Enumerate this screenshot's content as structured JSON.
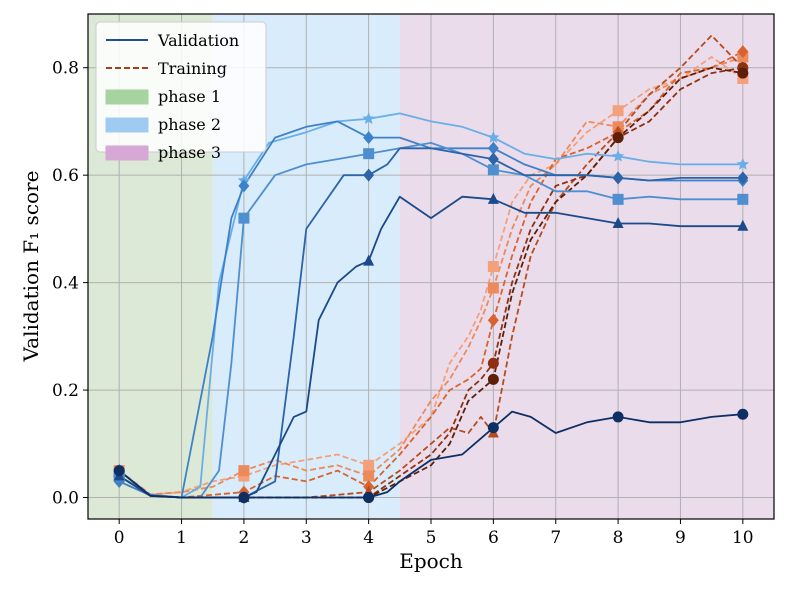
{
  "chart_data": {
    "type": "line",
    "xlabel": "Epoch",
    "ylabel": "Validation F₁ score",
    "xlim": [
      -0.5,
      10.5
    ],
    "ylim": [
      -0.04,
      0.9
    ],
    "xticks": [
      "0",
      "1",
      "2",
      "3",
      "4",
      "5",
      "6",
      "7",
      "8",
      "9",
      "10"
    ],
    "yticks": [
      "0.0",
      "0.2",
      "0.4",
      "0.6",
      "0.8"
    ],
    "grid": true,
    "legend_position": "top-left",
    "phases": [
      {
        "name": "phase 1",
        "start": -0.5,
        "end": 1.5,
        "color": "#dbe9d6"
      },
      {
        "name": "phase 2",
        "start": 1.5,
        "end": 4.5,
        "color": "#d9ecfb"
      },
      {
        "name": "phase 3",
        "start": 4.5,
        "end": 10.5,
        "color": "#ebdcec"
      }
    ],
    "legend": {
      "validation_label": "Validation",
      "training_label": "Training",
      "validation_color": "#1f4e8c",
      "training_color": "#a0401e",
      "phase_swatches": [
        "#a6d3a0",
        "#9fcbf3",
        "#d7a8d6"
      ]
    },
    "validation_series": [
      {
        "color": "#6aaee8",
        "marker": "star",
        "points": [
          [
            0,
            0.04
          ],
          [
            0.5,
            0.005
          ],
          [
            1,
            0
          ],
          [
            1.3,
            0.02
          ],
          [
            1.6,
            0.4
          ],
          [
            2,
            0.59
          ],
          [
            2.4,
            0.66
          ],
          [
            3,
            0.68
          ],
          [
            3.5,
            0.7
          ],
          [
            4,
            0.705
          ],
          [
            4.5,
            0.715
          ],
          [
            5,
            0.7
          ],
          [
            5.5,
            0.69
          ],
          [
            6,
            0.67
          ],
          [
            6.5,
            0.64
          ],
          [
            7,
            0.63
          ],
          [
            7.5,
            0.64
          ],
          [
            8,
            0.635
          ],
          [
            8.5,
            0.625
          ],
          [
            9,
            0.62
          ],
          [
            9.5,
            0.62
          ],
          [
            10,
            0.62
          ]
        ]
      },
      {
        "color": "#3d82c8",
        "marker": "diamond",
        "points": [
          [
            0,
            0.03
          ],
          [
            0.5,
            0.004
          ],
          [
            1,
            0
          ],
          [
            1.2,
            0.12
          ],
          [
            1.5,
            0.3
          ],
          [
            1.8,
            0.52
          ],
          [
            2,
            0.58
          ],
          [
            2.5,
            0.67
          ],
          [
            3,
            0.69
          ],
          [
            3.5,
            0.7
          ],
          [
            4,
            0.67
          ],
          [
            4.5,
            0.67
          ],
          [
            5,
            0.65
          ],
          [
            5.5,
            0.65
          ],
          [
            6,
            0.65
          ],
          [
            6.5,
            0.62
          ],
          [
            7,
            0.6
          ],
          [
            7.5,
            0.6
          ],
          [
            8,
            0.595
          ],
          [
            8.5,
            0.59
          ],
          [
            9,
            0.59
          ],
          [
            9.5,
            0.59
          ],
          [
            10,
            0.59
          ]
        ]
      },
      {
        "color": "#4f8fd0",
        "marker": "square",
        "points": [
          [
            0,
            0.04
          ],
          [
            0.5,
            0.005
          ],
          [
            1,
            0
          ],
          [
            1.3,
            0
          ],
          [
            1.6,
            0.05
          ],
          [
            1.8,
            0.25
          ],
          [
            2,
            0.52
          ],
          [
            2.5,
            0.6
          ],
          [
            3,
            0.62
          ],
          [
            3.5,
            0.63
          ],
          [
            4,
            0.64
          ],
          [
            4.5,
            0.65
          ],
          [
            5,
            0.66
          ],
          [
            5.5,
            0.64
          ],
          [
            6,
            0.61
          ],
          [
            6.5,
            0.6
          ],
          [
            7,
            0.57
          ],
          [
            7.5,
            0.57
          ],
          [
            8,
            0.555
          ],
          [
            8.5,
            0.56
          ],
          [
            9,
            0.555
          ],
          [
            9.5,
            0.555
          ],
          [
            10,
            0.555
          ]
        ]
      },
      {
        "color": "#2b64a8",
        "marker": "diamond",
        "points": [
          [
            0,
            0.05
          ],
          [
            0.5,
            0.004
          ],
          [
            1,
            0
          ],
          [
            2,
            0
          ],
          [
            2.5,
            0.03
          ],
          [
            2.8,
            0.3
          ],
          [
            3,
            0.5
          ],
          [
            3.3,
            0.55
          ],
          [
            3.6,
            0.6
          ],
          [
            4,
            0.6
          ],
          [
            4.3,
            0.62
          ],
          [
            4.5,
            0.65
          ],
          [
            5,
            0.65
          ],
          [
            5.5,
            0.64
          ],
          [
            6,
            0.63
          ],
          [
            6.5,
            0.6
          ],
          [
            7,
            0.6
          ],
          [
            7.5,
            0.6
          ],
          [
            8,
            0.595
          ],
          [
            8.5,
            0.59
          ],
          [
            9,
            0.595
          ],
          [
            9.5,
            0.595
          ],
          [
            10,
            0.595
          ]
        ]
      },
      {
        "color": "#1a4a8a",
        "marker": "triangle",
        "points": [
          [
            0,
            0.04
          ],
          [
            0.5,
            0.003
          ],
          [
            1,
            0
          ],
          [
            2,
            0
          ],
          [
            2.2,
            0.01
          ],
          [
            2.5,
            0.08
          ],
          [
            2.8,
            0.15
          ],
          [
            3,
            0.16
          ],
          [
            3.2,
            0.33
          ],
          [
            3.5,
            0.4
          ],
          [
            3.8,
            0.43
          ],
          [
            4,
            0.44
          ],
          [
            4.2,
            0.5
          ],
          [
            4.5,
            0.56
          ],
          [
            5,
            0.52
          ],
          [
            5.5,
            0.56
          ],
          [
            6,
            0.555
          ],
          [
            6.5,
            0.53
          ],
          [
            7,
            0.53
          ],
          [
            7.5,
            0.52
          ],
          [
            8,
            0.51
          ],
          [
            8.5,
            0.51
          ],
          [
            9,
            0.505
          ],
          [
            9.5,
            0.505
          ],
          [
            10,
            0.505
          ]
        ]
      },
      {
        "color": "#0d2f63",
        "marker": "circle",
        "points": [
          [
            0,
            0.05
          ],
          [
            0.5,
            0.003
          ],
          [
            1,
            0
          ],
          [
            2,
            0
          ],
          [
            3,
            0
          ],
          [
            4,
            0
          ],
          [
            4.3,
            0.01
          ],
          [
            4.5,
            0.03
          ],
          [
            5,
            0.07
          ],
          [
            5.5,
            0.08
          ],
          [
            6,
            0.13
          ],
          [
            6.3,
            0.16
          ],
          [
            6.6,
            0.15
          ],
          [
            7,
            0.12
          ],
          [
            7.5,
            0.14
          ],
          [
            8,
            0.15
          ],
          [
            8.5,
            0.14
          ],
          [
            9,
            0.14
          ],
          [
            9.5,
            0.15
          ],
          [
            10,
            0.155
          ]
        ]
      }
    ],
    "training_series": [
      {
        "color": "#f4a07a",
        "marker": "square",
        "points": [
          [
            0,
            0.04
          ],
          [
            0.5,
            0.005
          ],
          [
            1,
            0.01
          ],
          [
            1.5,
            0.03
          ],
          [
            2,
            0.04
          ],
          [
            2.5,
            0.06
          ],
          [
            3,
            0.07
          ],
          [
            3.5,
            0.08
          ],
          [
            4,
            0.06
          ],
          [
            4.5,
            0.1
          ],
          [
            5,
            0.15
          ],
          [
            5.3,
            0.25
          ],
          [
            5.6,
            0.3
          ],
          [
            5.8,
            0.35
          ],
          [
            6,
            0.43
          ],
          [
            6.3,
            0.55
          ],
          [
            6.6,
            0.6
          ],
          [
            7,
            0.62
          ],
          [
            7.5,
            0.68
          ],
          [
            8,
            0.72
          ],
          [
            8.5,
            0.76
          ],
          [
            9,
            0.78
          ],
          [
            9.5,
            0.82
          ],
          [
            10,
            0.78
          ]
        ]
      },
      {
        "color": "#ec8a5c",
        "marker": "square",
        "points": [
          [
            0,
            0.05
          ],
          [
            0.5,
            0.006
          ],
          [
            1,
            0.01
          ],
          [
            1.5,
            0.02
          ],
          [
            2,
            0.05
          ],
          [
            2.5,
            0.07
          ],
          [
            3,
            0.05
          ],
          [
            3.5,
            0.06
          ],
          [
            4,
            0.04
          ],
          [
            4.5,
            0.09
          ],
          [
            5,
            0.18
          ],
          [
            5.3,
            0.22
          ],
          [
            5.6,
            0.28
          ],
          [
            5.8,
            0.33
          ],
          [
            6,
            0.39
          ],
          [
            6.3,
            0.5
          ],
          [
            6.6,
            0.58
          ],
          [
            7,
            0.62
          ],
          [
            7.5,
            0.7
          ],
          [
            8,
            0.69
          ],
          [
            8.5,
            0.75
          ],
          [
            9,
            0.78
          ],
          [
            9.5,
            0.8
          ],
          [
            10,
            0.82
          ]
        ]
      },
      {
        "color": "#d9622e",
        "marker": "diamond",
        "points": [
          [
            0,
            0.03
          ],
          [
            0.5,
            0.004
          ],
          [
            1,
            0
          ],
          [
            2,
            0.01
          ],
          [
            2.5,
            0.04
          ],
          [
            3,
            0.03
          ],
          [
            3.5,
            0.05
          ],
          [
            4,
            0.02
          ],
          [
            4.5,
            0.08
          ],
          [
            5,
            0.15
          ],
          [
            5.3,
            0.2
          ],
          [
            5.6,
            0.22
          ],
          [
            5.8,
            0.24
          ],
          [
            6,
            0.33
          ],
          [
            6.3,
            0.45
          ],
          [
            6.6,
            0.55
          ],
          [
            7,
            0.63
          ],
          [
            7.5,
            0.65
          ],
          [
            8,
            0.68
          ],
          [
            8.5,
            0.72
          ],
          [
            9,
            0.79
          ],
          [
            9.5,
            0.8
          ],
          [
            10,
            0.83
          ]
        ]
      },
      {
        "color": "#b74b1d",
        "marker": "triangle",
        "points": [
          [
            0,
            0.04
          ],
          [
            0.5,
            0.004
          ],
          [
            1,
            0
          ],
          [
            2,
            0
          ],
          [
            3,
            0
          ],
          [
            4,
            0.01
          ],
          [
            4.5,
            0.05
          ],
          [
            5,
            0.1
          ],
          [
            5.3,
            0.13
          ],
          [
            5.6,
            0.12
          ],
          [
            5.8,
            0.15
          ],
          [
            6,
            0.12
          ],
          [
            6.3,
            0.3
          ],
          [
            6.6,
            0.45
          ],
          [
            7,
            0.55
          ],
          [
            7.5,
            0.62
          ],
          [
            8,
            0.68
          ],
          [
            8.5,
            0.75
          ],
          [
            9,
            0.8
          ],
          [
            9.5,
            0.86
          ],
          [
            10,
            0.8
          ]
        ]
      },
      {
        "color": "#8e3112",
        "marker": "circle",
        "points": [
          [
            0,
            0.04
          ],
          [
            0.5,
            0.004
          ],
          [
            1,
            0
          ],
          [
            2,
            0
          ],
          [
            3,
            0
          ],
          [
            4,
            0
          ],
          [
            4.5,
            0.04
          ],
          [
            5,
            0.08
          ],
          [
            5.3,
            0.12
          ],
          [
            5.6,
            0.2
          ],
          [
            5.8,
            0.22
          ],
          [
            6,
            0.25
          ],
          [
            6.3,
            0.4
          ],
          [
            6.6,
            0.5
          ],
          [
            7,
            0.58
          ],
          [
            7.5,
            0.6
          ],
          [
            8,
            0.67
          ],
          [
            8.5,
            0.7
          ],
          [
            9,
            0.76
          ],
          [
            9.5,
            0.79
          ],
          [
            10,
            0.8
          ]
        ]
      },
      {
        "color": "#5e1f08",
        "marker": "circle",
        "points": [
          [
            0,
            0.04
          ],
          [
            0.5,
            0.004
          ],
          [
            1,
            0
          ],
          [
            2,
            0
          ],
          [
            3,
            0
          ],
          [
            4,
            0
          ],
          [
            4.5,
            0.03
          ],
          [
            5,
            0.06
          ],
          [
            5.3,
            0.1
          ],
          [
            5.6,
            0.18
          ],
          [
            5.8,
            0.2
          ],
          [
            6,
            0.22
          ],
          [
            6.3,
            0.38
          ],
          [
            6.6,
            0.48
          ],
          [
            7,
            0.55
          ],
          [
            7.5,
            0.6
          ],
          [
            8,
            0.67
          ],
          [
            8.5,
            0.72
          ],
          [
            9,
            0.78
          ],
          [
            9.5,
            0.8
          ],
          [
            10,
            0.79
          ]
        ]
      }
    ]
  }
}
